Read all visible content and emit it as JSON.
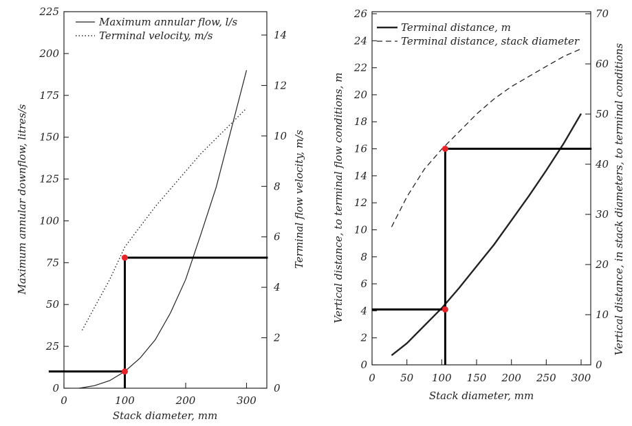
{
  "chart_data": [
    {
      "type": "line",
      "xlabel": "Stack diameter, mm",
      "ylabel": "Maximum annular downflow, litres/s",
      "y2label": "Terminal flow velocity, m/s",
      "xlim": [
        0,
        320
      ],
      "ylim": [
        0,
        225
      ],
      "y2lim": [
        0,
        16
      ],
      "xticks": [
        0,
        100,
        200,
        300
      ],
      "yticks": [
        0,
        25,
        50,
        75,
        100,
        125,
        150,
        175,
        200,
        225
      ],
      "y2ticks": [
        0,
        2,
        4,
        6,
        8,
        10,
        12,
        14
      ],
      "legend_position": "top-right",
      "grid": false,
      "series": [
        {
          "name": "Maximum annular flow, l/s",
          "style": "solid",
          "axis": "left",
          "x": [
            25,
            50,
            75,
            100,
            125,
            150,
            175,
            200,
            225,
            250,
            275,
            300
          ],
          "y": [
            0,
            1.5,
            4.5,
            10,
            18,
            29,
            45,
            65,
            92,
            120,
            155,
            190
          ]
        },
        {
          "name": "Terminal velocity, m/s",
          "style": "dotted",
          "axis": "right",
          "x": [
            30,
            50,
            75,
            100,
            125,
            150,
            175,
            200,
            225,
            250,
            275,
            300
          ],
          "y": [
            2.3,
            3.2,
            4.3,
            5.6,
            6.4,
            7.2,
            7.9,
            8.6,
            9.3,
            9.9,
            10.5,
            11.1
          ]
        }
      ],
      "markers": [
        {
          "x": 100,
          "y": 78
        },
        {
          "x": 100,
          "y": 10
        }
      ],
      "guides": [
        {
          "type": "hline",
          "y": 78,
          "x_from": 100,
          "x_to": 335
        },
        {
          "type": "vline",
          "x": 100,
          "y_from": 0,
          "y_to": 78
        },
        {
          "type": "hline",
          "y": 10,
          "x_from": -25,
          "x_to": 100
        }
      ]
    },
    {
      "type": "line",
      "xlabel": "Stack diameter, mm",
      "ylabel": "Vertical distance, to terminal flow conditions, m",
      "y2label": "Vertical distance, in stack diameters, to terminal conditions",
      "xlim": [
        0,
        300
      ],
      "ylim": [
        0,
        26
      ],
      "y2lim": [
        0,
        70
      ],
      "xticks": [
        0,
        50,
        100,
        150,
        200,
        250,
        300
      ],
      "yticks": [
        0,
        2,
        4,
        6,
        8,
        10,
        12,
        14,
        16,
        18,
        20,
        22,
        24,
        26
      ],
      "y2ticks": [
        0,
        10,
        20,
        30,
        40,
        50,
        60,
        70
      ],
      "legend_position": "top-left",
      "grid": false,
      "series": [
        {
          "name": "Terminal distance, m",
          "style": "solid",
          "axis": "left",
          "x": [
            28,
            50,
            75,
            100,
            125,
            150,
            175,
            200,
            225,
            250,
            275,
            300
          ],
          "y": [
            0.7,
            1.6,
            2.9,
            4.2,
            5.7,
            7.3,
            8.9,
            10.7,
            12.5,
            14.4,
            16.4,
            18.6
          ]
        },
        {
          "name": "Terminal distance, stack diameter",
          "style": "dashed",
          "axis": "right",
          "x": [
            28,
            50,
            75,
            100,
            125,
            150,
            175,
            200,
            225,
            250,
            275,
            300
          ],
          "y": [
            27.5,
            33.5,
            39.0,
            43.0,
            46.5,
            50.0,
            53.0,
            55.5,
            57.5,
            59.5,
            61.5,
            63.0
          ]
        }
      ],
      "markers": [
        {
          "x": 105,
          "y": 16
        },
        {
          "x": 105,
          "y": 4.1
        }
      ],
      "guides": [
        {
          "type": "hline",
          "y": 16,
          "x_from": 105,
          "x_to": 315
        },
        {
          "type": "vline",
          "x": 105,
          "y_from": 0,
          "y_to": 16
        },
        {
          "type": "hline",
          "y": 4.1,
          "x_from": 0,
          "x_to": 105
        }
      ]
    }
  ]
}
